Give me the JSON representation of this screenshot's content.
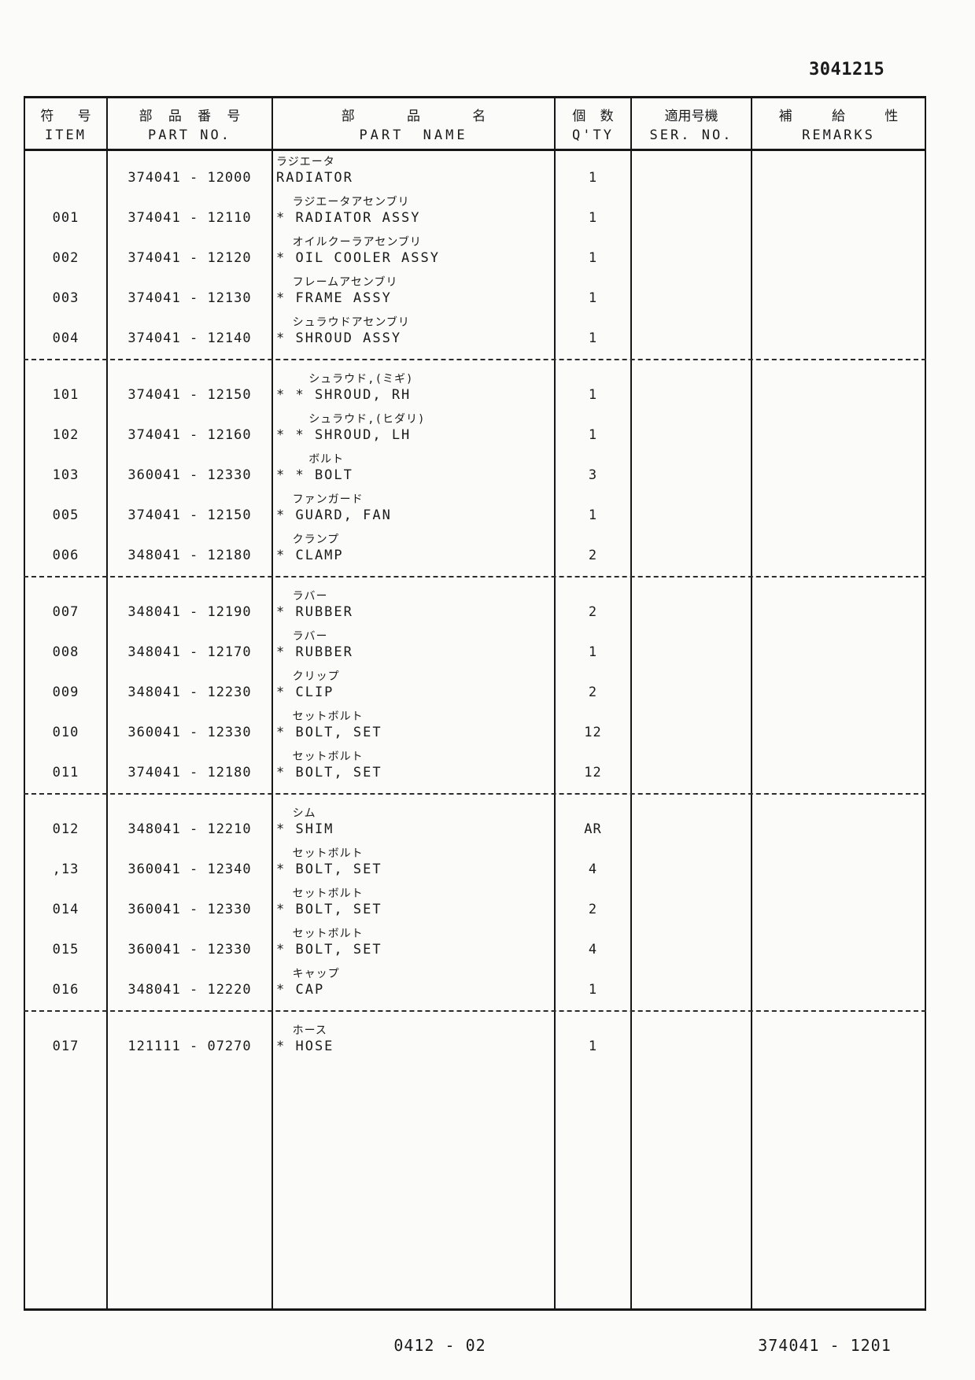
{
  "colors": {
    "ink": "#1a1a1a",
    "paper": "#fbfbfa"
  },
  "page": {
    "doc_number": "3041215",
    "footer_left": "0412 - 02",
    "footer_right": "374041 - 1201"
  },
  "table": {
    "headers": [
      {
        "jp": "符 号",
        "en": "ITEM"
      },
      {
        "jp": "部 品 番 号",
        "en": "PART NO."
      },
      {
        "jp": "部 品 名",
        "en": "PART NAME"
      },
      {
        "jp": "個 数",
        "en": "Q'TY"
      },
      {
        "jp": "適用号機",
        "en": "SER. NO."
      },
      {
        "jp": "補 給 性",
        "en": "REMARKS"
      }
    ],
    "rows": [
      {
        "item": "",
        "part_no": "374041 - 12000",
        "name_jp": "ラジエータ",
        "name_en": "RADIATOR",
        "qty": "1",
        "ser_no": "",
        "remarks": "",
        "separator_after": false
      },
      {
        "item": "001",
        "part_no": "374041 - 12110",
        "name_jp": "ラジエータアセンブリ",
        "name_en": "* RADIATOR ASSY",
        "qty": "1",
        "ser_no": "",
        "remarks": "",
        "separator_after": false
      },
      {
        "item": "002",
        "part_no": "374041 - 12120",
        "name_jp": "オイルクーラアセンブリ",
        "name_en": "* OIL COOLER ASSY",
        "qty": "1",
        "ser_no": "",
        "remarks": "",
        "separator_after": false
      },
      {
        "item": "003",
        "part_no": "374041 - 12130",
        "name_jp": "フレームアセンブリ",
        "name_en": "* FRAME ASSY",
        "qty": "1",
        "ser_no": "",
        "remarks": "",
        "separator_after": false
      },
      {
        "item": "004",
        "part_no": "374041 - 12140",
        "name_jp": "シュラウドアセンブリ",
        "name_en": "* SHROUD ASSY",
        "qty": "1",
        "ser_no": "",
        "remarks": "",
        "separator_after": true
      },
      {
        "item": "101",
        "part_no": "374041 - 12150",
        "name_jp": "シュラウド,(ミギ)",
        "name_en": "* * SHROUD, RH",
        "qty": "1",
        "ser_no": "",
        "remarks": "",
        "separator_after": false
      },
      {
        "item": "102",
        "part_no": "374041 - 12160",
        "name_jp": "シュラウド,(ヒダリ)",
        "name_en": "* * SHROUD, LH",
        "qty": "1",
        "ser_no": "",
        "remarks": "",
        "separator_after": false
      },
      {
        "item": "103",
        "part_no": "360041 - 12330",
        "name_jp": "ボルト",
        "name_en": "* * BOLT",
        "qty": "3",
        "ser_no": "",
        "remarks": "",
        "separator_after": false
      },
      {
        "item": "005",
        "part_no": "374041 - 12150",
        "name_jp": "ファンガード",
        "name_en": "* GUARD, FAN",
        "qty": "1",
        "ser_no": "",
        "remarks": "",
        "separator_after": false
      },
      {
        "item": "006",
        "part_no": "348041 - 12180",
        "name_jp": "クランプ",
        "name_en": "* CLAMP",
        "qty": "2",
        "ser_no": "",
        "remarks": "",
        "separator_after": true
      },
      {
        "item": "007",
        "part_no": "348041 - 12190",
        "name_jp": "ラバー",
        "name_en": "* RUBBER",
        "qty": "2",
        "ser_no": "",
        "remarks": "",
        "separator_after": false
      },
      {
        "item": "008",
        "part_no": "348041 - 12170",
        "name_jp": "ラバー",
        "name_en": "* RUBBER",
        "qty": "1",
        "ser_no": "",
        "remarks": "",
        "separator_after": false
      },
      {
        "item": "009",
        "part_no": "348041 - 12230",
        "name_jp": "クリップ",
        "name_en": "* CLIP",
        "qty": "2",
        "ser_no": "",
        "remarks": "",
        "separator_after": false
      },
      {
        "item": "010",
        "part_no": "360041 - 12330",
        "name_jp": "セットボルト",
        "name_en": "* BOLT, SET",
        "qty": "12",
        "ser_no": "",
        "remarks": "",
        "separator_after": false
      },
      {
        "item": "011",
        "part_no": "374041 - 12180",
        "name_jp": "セットボルト",
        "name_en": "* BOLT, SET",
        "qty": "12",
        "ser_no": "",
        "remarks": "",
        "separator_after": true
      },
      {
        "item": "012",
        "part_no": "348041 - 12210",
        "name_jp": "シム",
        "name_en": "* SHIM",
        "qty": "AR",
        "ser_no": "",
        "remarks": "",
        "separator_after": false
      },
      {
        "item": ",13",
        "part_no": "360041 - 12340",
        "name_jp": "セットボルト",
        "name_en": "* BOLT, SET",
        "qty": "4",
        "ser_no": "",
        "remarks": "",
        "separator_after": false
      },
      {
        "item": "014",
        "part_no": "360041 - 12330",
        "name_jp": "セットボルト",
        "name_en": "* BOLT, SET",
        "qty": "2",
        "ser_no": "",
        "remarks": "",
        "separator_after": false
      },
      {
        "item": "015",
        "part_no": "360041 - 12330",
        "name_jp": "セットボルト",
        "name_en": "* BOLT, SET",
        "qty": "4",
        "ser_no": "",
        "remarks": "",
        "separator_after": false
      },
      {
        "item": "016",
        "part_no": "348041 - 12220",
        "name_jp": "キャップ",
        "name_en": "* CAP",
        "qty": "1",
        "ser_no": "",
        "remarks": "",
        "separator_after": true
      },
      {
        "item": "017",
        "part_no": "121111 - 07270",
        "name_jp": "ホース",
        "name_en": "* HOSE",
        "qty": "1",
        "ser_no": "",
        "remarks": "",
        "separator_after": false
      }
    ]
  }
}
